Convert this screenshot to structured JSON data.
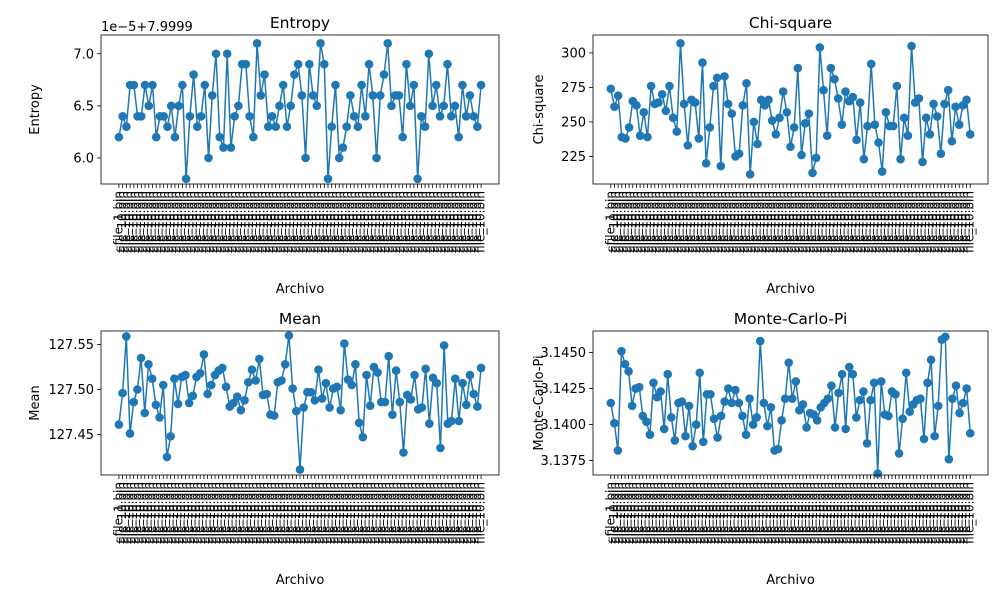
{
  "chart_data": [
    {
      "type": "line",
      "title": "Entropy",
      "xlabel": "Archivo",
      "ylabel": "Entropy",
      "offset_text": "1e−5+7.9999",
      "ylim": [
        5.75,
        7.18
      ],
      "yticks": [
        6.0,
        6.5,
        7.0
      ],
      "ytick_labels": [
        "6.0",
        "6.5",
        "7.0"
      ],
      "xtick_labels_visible": [
        "file_1.bin",
        "file_10.bin"
      ],
      "series": [
        {
          "values": [
            6.2,
            6.4,
            6.3,
            6.7,
            6.7,
            6.4,
            6.4,
            6.7,
            6.5,
            6.7,
            6.2,
            6.4,
            6.4,
            6.3,
            6.5,
            6.2,
            6.5,
            6.7,
            5.8,
            6.4,
            6.8,
            6.3,
            6.4,
            6.7,
            6.0,
            6.6,
            7.0,
            6.2,
            6.1,
            7.0,
            6.1,
            6.4,
            6.5,
            6.9,
            6.9,
            6.4,
            6.2,
            7.1,
            6.6,
            6.8,
            6.3,
            6.4,
            6.3,
            6.5,
            6.7,
            6.3,
            6.5,
            6.8,
            6.9,
            6.6,
            6.0,
            6.9,
            6.6,
            6.5,
            7.1,
            6.9,
            5.8,
            6.3,
            6.7,
            6.0,
            6.1,
            6.3,
            6.6,
            6.4,
            6.3,
            6.7,
            6.4,
            6.9,
            6.6,
            6.0,
            6.6,
            6.8,
            7.1,
            6.5,
            6.6,
            6.6,
            6.2,
            6.9,
            6.5,
            6.7,
            5.8,
            6.4,
            6.3,
            7.0,
            6.5,
            6.7,
            6.4,
            6.5,
            6.9,
            6.4,
            6.5,
            6.2,
            6.7,
            6.4,
            6.6,
            6.4,
            6.3,
            6.7
          ]
        }
      ]
    },
    {
      "type": "line",
      "title": "Chi-square",
      "xlabel": "Archivo",
      "ylabel": "Chi-square",
      "ylim": [
        205,
        313
      ],
      "yticks": [
        225,
        250,
        275,
        300
      ],
      "ytick_labels": [
        "225",
        "250",
        "275",
        "300"
      ],
      "xtick_labels_visible": [
        "file_1.bin",
        "file_10.bin"
      ],
      "series": [
        {
          "values": [
            274,
            261,
            269,
            239,
            238,
            246,
            265,
            262,
            240,
            257,
            239,
            276,
            263,
            264,
            270,
            258,
            276,
            253,
            243,
            307,
            263,
            233,
            266,
            264,
            238,
            293,
            220,
            246,
            276,
            282,
            218,
            283,
            263,
            256,
            225,
            227,
            262,
            278,
            212,
            250,
            234,
            266,
            262,
            266,
            251,
            241,
            253,
            272,
            257,
            232,
            246,
            289,
            226,
            249,
            256,
            213,
            224,
            304,
            273,
            240,
            289,
            281,
            267,
            248,
            272,
            265,
            268,
            237,
            264,
            223,
            247,
            292,
            248,
            235,
            214,
            257,
            247,
            247,
            276,
            223,
            253,
            240,
            305,
            264,
            267,
            221,
            253,
            241,
            263,
            254,
            227,
            263,
            273,
            236,
            261,
            248,
            262,
            266,
            241
          ]
        }
      ]
    },
    {
      "type": "line",
      "title": "Mean",
      "xlabel": "Archivo",
      "ylabel": "Mean",
      "ylim": [
        127.405,
        127.565
      ],
      "yticks": [
        127.45,
        127.5,
        127.55
      ],
      "ytick_labels": [
        "127.45",
        "127.50",
        "127.55"
      ],
      "xtick_labels_visible": [
        "file_1.bin",
        "file_10.bin"
      ],
      "series": [
        {
          "values": [
            127.461,
            127.496,
            127.559,
            127.451,
            127.486,
            127.5,
            127.535,
            127.474,
            127.528,
            127.512,
            127.483,
            127.469,
            127.505,
            127.425,
            127.448,
            127.512,
            127.484,
            127.514,
            127.516,
            127.485,
            127.493,
            127.514,
            127.518,
            127.539,
            127.495,
            127.505,
            127.516,
            127.521,
            127.524,
            127.503,
            127.481,
            127.485,
            127.492,
            127.477,
            127.488,
            127.508,
            127.522,
            127.51,
            127.534,
            127.494,
            127.495,
            127.472,
            127.471,
            127.508,
            127.51,
            127.528,
            127.56,
            127.501,
            127.476,
            127.411,
            127.48,
            127.497,
            127.497,
            127.488,
            127.522,
            127.49,
            127.507,
            127.48,
            127.501,
            127.503,
            127.477,
            127.551,
            127.511,
            127.505,
            127.528,
            127.463,
            127.447,
            127.516,
            127.482,
            127.525,
            127.519,
            127.486,
            127.486,
            127.537,
            127.472,
            127.521,
            127.486,
            127.43,
            127.494,
            127.489,
            127.516,
            127.478,
            127.48,
            127.523,
            127.462,
            127.513,
            127.507,
            127.435,
            127.549,
            127.462,
            127.465,
            127.512,
            127.465,
            127.507,
            127.483,
            127.516,
            127.495,
            127.481,
            127.524
          ]
        }
      ]
    },
    {
      "type": "line",
      "title": "Monte-Carlo-Pi",
      "xlabel": "Archivo",
      "ylabel": "Monte-Carlo-Pi",
      "ylim": [
        3.1365,
        3.1465
      ],
      "yticks": [
        3.1375,
        3.14,
        3.1425,
        3.145
      ],
      "ytick_labels": [
        "3.1375",
        "3.1400",
        "3.1425",
        "3.1450"
      ],
      "xtick_labels_visible": [
        "file_1.bin",
        "file_10.bin"
      ],
      "series": [
        {
          "values": [
            3.1415,
            3.1401,
            3.1382,
            3.1451,
            3.1442,
            3.1437,
            3.1413,
            3.1425,
            3.1426,
            3.1406,
            3.1402,
            3.1393,
            3.1429,
            3.1419,
            3.1423,
            3.1397,
            3.1435,
            3.1405,
            3.1389,
            3.1415,
            3.1416,
            3.1392,
            3.1413,
            3.1385,
            3.14,
            3.1436,
            3.1388,
            3.1421,
            3.1421,
            3.1404,
            3.1391,
            3.1406,
            3.1416,
            3.1425,
            3.1415,
            3.1424,
            3.1415,
            3.1406,
            3.1393,
            3.1418,
            3.14,
            3.1405,
            3.1458,
            3.1415,
            3.1399,
            3.1412,
            3.1382,
            3.1383,
            3.1403,
            3.1418,
            3.1443,
            3.1418,
            3.143,
            3.141,
            3.1414,
            3.1398,
            3.1408,
            3.1407,
            3.1403,
            3.1412,
            3.1415,
            3.1418,
            3.1427,
            3.1398,
            3.1422,
            3.1435,
            3.1397,
            3.144,
            3.1435,
            3.1405,
            3.1417,
            3.1423,
            3.1387,
            3.1417,
            3.1429,
            3.1366,
            3.143,
            3.1407,
            3.1406,
            3.1423,
            3.1421,
            3.138,
            3.1404,
            3.1436,
            3.1409,
            3.1414,
            3.1417,
            3.1418,
            3.139,
            3.1429,
            3.1445,
            3.1392,
            3.1413,
            3.1459,
            3.1461,
            3.1376,
            3.1418,
            3.1427,
            3.1408,
            3.1415,
            3.1425,
            3.1394
          ]
        }
      ]
    }
  ],
  "style": {
    "line_color": "#1f77b4",
    "marker_color": "#1f77b4"
  }
}
